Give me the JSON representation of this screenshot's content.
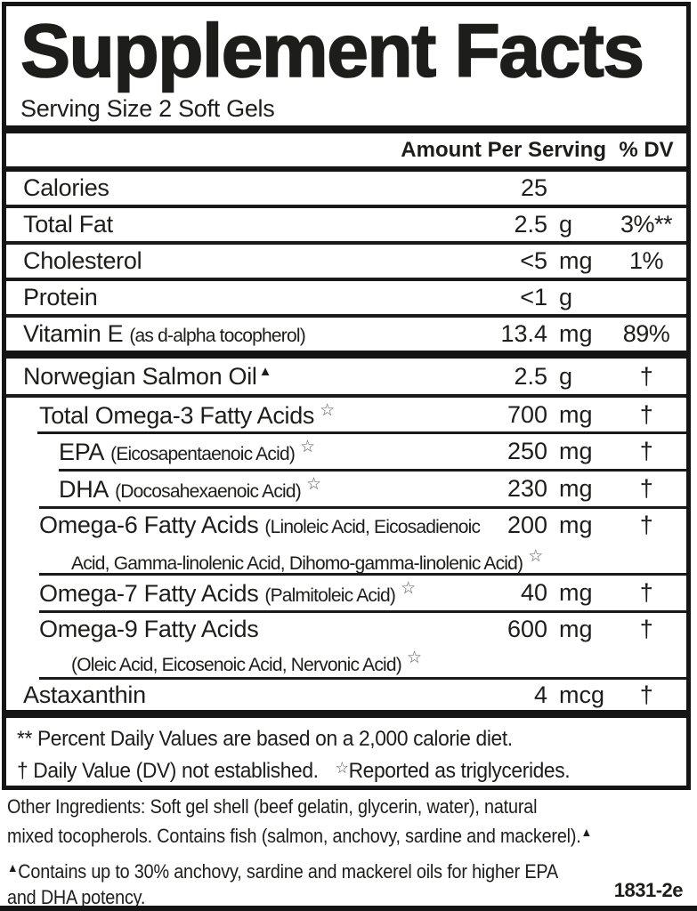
{
  "panel": {
    "title": "Supplement Facts",
    "serving_size": "Serving Size 2 Soft Gels",
    "columns": {
      "amount_header": "Amount Per Serving",
      "dv_header": "% DV"
    },
    "rows": [
      {
        "name": "Calories",
        "amount": "25",
        "unit": "",
        "dv": ""
      },
      {
        "name": "Total Fat",
        "amount": "2.5",
        "unit": "g",
        "dv": "3%**"
      },
      {
        "name": "Cholesterol",
        "amount": "<5",
        "unit": "mg",
        "dv": "1%"
      },
      {
        "name": "Protein",
        "amount": "<1",
        "unit": "g",
        "dv": ""
      },
      {
        "name": "Vitamin E",
        "paren": "(as d-alpha tocopherol)",
        "amount": "13.4",
        "unit": "mg",
        "dv": "89%"
      },
      {
        "name": "Norwegian Salmon Oil",
        "mark": "▲",
        "amount": "2.5",
        "unit": "g",
        "dv": "†"
      },
      {
        "name": "Total Omega-3 Fatty Acids",
        "mark": "☆",
        "amount": "700",
        "unit": "mg",
        "dv": "†"
      },
      {
        "name": "EPA",
        "paren": "(Eicosapentaenoic Acid)",
        "mark": "☆",
        "amount": "250",
        "unit": "mg",
        "dv": "†"
      },
      {
        "name": "DHA",
        "paren": "(Docosahexaenoic Acid)",
        "mark": "☆",
        "amount": "230",
        "unit": "mg",
        "dv": "†"
      },
      {
        "name": "Omega-6 Fatty Acids",
        "paren": "(Linoleic Acid, Eicosadienoic",
        "line2": "Acid, Gamma-linolenic Acid, Dihomo-gamma-linolenic Acid)",
        "line2_mark": "☆",
        "amount": "200",
        "unit": "mg",
        "dv": "†"
      },
      {
        "name": "Omega-7 Fatty Acids",
        "paren": "(Palmitoleic Acid)",
        "mark": "☆",
        "amount": "40",
        "unit": "mg",
        "dv": "†"
      },
      {
        "name": "Omega-9 Fatty Acids",
        "line2": "(Oleic Acid, Eicosenoic Acid, Nervonic Acid)",
        "line2_mark": "☆",
        "amount": "600",
        "unit": "mg",
        "dv": "†"
      },
      {
        "name": "Astaxanthin",
        "amount": "4",
        "unit": "mcg",
        "dv": "†"
      }
    ],
    "footnote_line1": "** Percent Daily Values are based on a 2,000 calorie diet.",
    "footnote_line2a": "† Daily Value (DV) not established.",
    "footnote_line2b_mark": "☆",
    "footnote_line2b": "Reported as triglycerides."
  },
  "below_panel": {
    "other_ingredients_line1": "Other Ingredients: Soft gel shell (beef gelatin, glycerin, water), natural",
    "other_ingredients_line2": "mixed tocopherols. Contains fish (salmon, anchovy, sardine and mackerel).",
    "other_ingredients_end_mark": "▲",
    "disclaimer_mark": "▲",
    "disclaimer_line1": "Contains up to 30% anchovy, sardine and mackerel oils for higher EPA",
    "disclaimer_line2": "and DHA potency.",
    "item_code": "1831-2e"
  },
  "colors": {
    "text": "#1d1d1b",
    "line": "#151515",
    "background": "#ffffff"
  }
}
